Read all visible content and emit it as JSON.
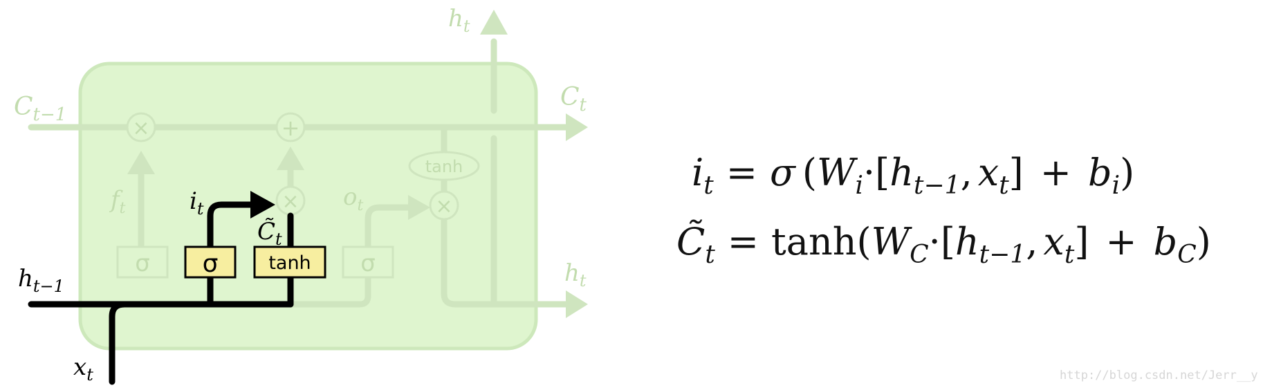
{
  "colors": {
    "cell_fill": "#dff5cf",
    "cell_stroke": "#cde8bb",
    "faded": "#cfe5bf",
    "faded_label": "#c2dcae",
    "active": "#000000",
    "gate_fill": "#f7eea0"
  },
  "labels": {
    "c_prev": "C",
    "c_prev_sub": "t−1",
    "c_t": "C",
    "c_t_sub": "t",
    "h_top": "h",
    "h_top_sub": "t",
    "h_right": "h",
    "h_right_sub": "t",
    "h_prev": "h",
    "h_prev_sub": "t−1",
    "x_t": "x",
    "x_t_sub": "t",
    "f_t": "f",
    "f_t_sub": "t",
    "i_t": "i",
    "i_t_sub": "t",
    "o_t": "o",
    "o_t_sub": "t",
    "c_tilde": "C̃",
    "c_tilde_sub": "t"
  },
  "ops": {
    "times": "×",
    "plus": "+",
    "tanh": "tanh"
  },
  "gates": {
    "forget": "σ",
    "input": "σ",
    "candidate": "tanh",
    "output": "σ"
  },
  "equations": {
    "eq1": {
      "lhs": "i",
      "lhs_sub": "t",
      "eq": "=",
      "sigma": "σ",
      "open": "(",
      "w": "W",
      "w_sub": "i",
      "dot": "·",
      "bopen": "[",
      "h": "h",
      "h_sub": "t−1",
      "comma": ",",
      "x": "x",
      "x_sub": "t",
      "bclose": "]",
      "plus": "+",
      "b": "b",
      "b_sub": "i",
      "close": ")"
    },
    "eq2": {
      "lhs": "C̃",
      "lhs_sub": "t",
      "eq": "=",
      "fn": "tanh(",
      "w": "W",
      "w_sub": "C",
      "dot": "·",
      "bopen": "[",
      "h": "h",
      "h_sub": "t−1",
      "comma": ",",
      "x": "x",
      "x_sub": "t",
      "bclose": "]",
      "plus": "+",
      "b": "b",
      "b_sub": "C",
      "close": ")"
    }
  },
  "watermark": "http://blog.csdn.net/Jerr__y"
}
